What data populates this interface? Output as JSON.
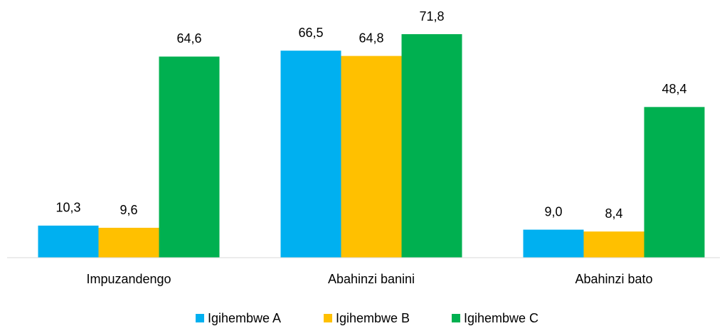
{
  "chart_data": {
    "type": "bar",
    "categories": [
      "Impuzandengo",
      "Abahinzi banini",
      "Abahinzi bato"
    ],
    "series": [
      {
        "name": "Igihembwe A",
        "color": "#00b0f0",
        "values": [
          10.3,
          66.5,
          9.0
        ],
        "value_labels": [
          "10,3",
          "66,5",
          "9,0"
        ]
      },
      {
        "name": "Igihembwe B",
        "color": "#ffc000",
        "values": [
          9.6,
          64.8,
          8.4
        ],
        "value_labels": [
          "9,6",
          "64,8",
          "8,4"
        ]
      },
      {
        "name": "Igihembwe C",
        "color": "#00b050",
        "values": [
          64.6,
          71.8,
          48.4
        ],
        "value_labels": [
          "64,6",
          "71,8",
          "48,4"
        ]
      }
    ],
    "legend": "bottom"
  }
}
